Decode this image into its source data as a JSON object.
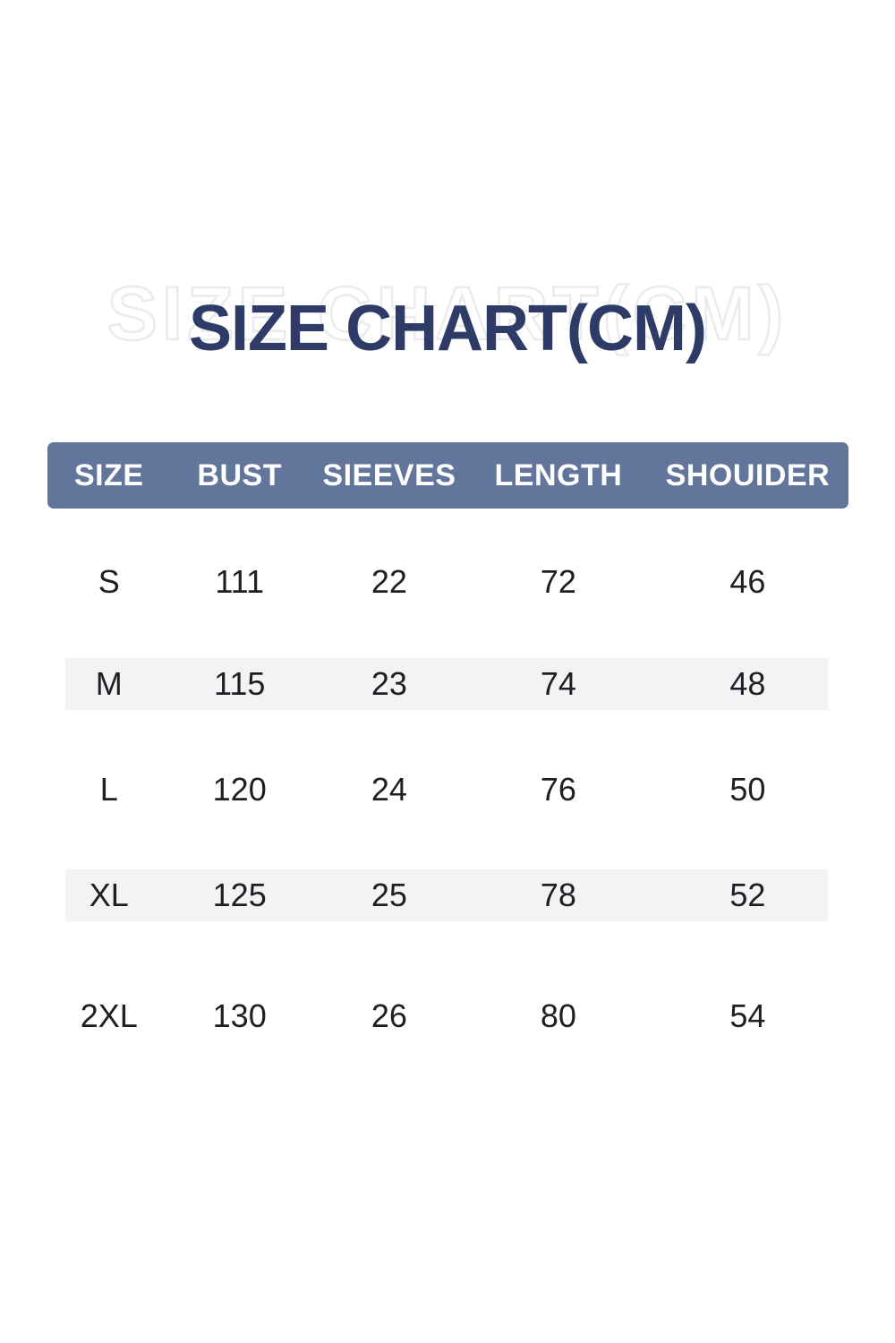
{
  "title": {
    "text": "SIZE CHART(CM)",
    "watermark": "SIZE CHART(CM)"
  },
  "colors": {
    "title_navy": "#2d3b66",
    "watermark_outline": "#ebebee",
    "header_bar": "#62759b",
    "header_text": "#ffffff",
    "row_stripe": "#f3f3f5",
    "data_text": "#1f1f23",
    "background": "#ffffff"
  },
  "table": {
    "headers": [
      "SIZE",
      "BUST",
      "SIEEVES",
      "LENGTH",
      "SHOUIDER"
    ],
    "rows": [
      {
        "size": "S",
        "bust": "111",
        "sleeves": "22",
        "length": "72",
        "shoulder": "46"
      },
      {
        "size": "M",
        "bust": "115",
        "sleeves": "23",
        "length": "74",
        "shoulder": "48"
      },
      {
        "size": "L",
        "bust": "120",
        "sleeves": "24",
        "length": "76",
        "shoulder": "50"
      },
      {
        "size": "XL",
        "bust": "125",
        "sleeves": "25",
        "length": "78",
        "shoulder": "52"
      },
      {
        "size": "2XL",
        "bust": "130",
        "sleeves": "26",
        "length": "80",
        "shoulder": "54"
      }
    ]
  },
  "chart_data": {
    "type": "table",
    "title": "SIZE CHART(CM)",
    "unit": "cm",
    "columns": [
      "SIZE",
      "BUST",
      "SIEEVES",
      "LENGTH",
      "SHOUIDER"
    ],
    "rows": [
      [
        "S",
        111,
        22,
        72,
        46
      ],
      [
        "M",
        115,
        23,
        74,
        48
      ],
      [
        "L",
        120,
        24,
        76,
        50
      ],
      [
        "XL",
        125,
        25,
        78,
        52
      ],
      [
        "2XL",
        130,
        26,
        80,
        54
      ]
    ],
    "layout_hints": {
      "striped_rows": [
        "M",
        "XL"
      ],
      "header_background": "#62759b",
      "watermark_behind_title": true
    }
  }
}
